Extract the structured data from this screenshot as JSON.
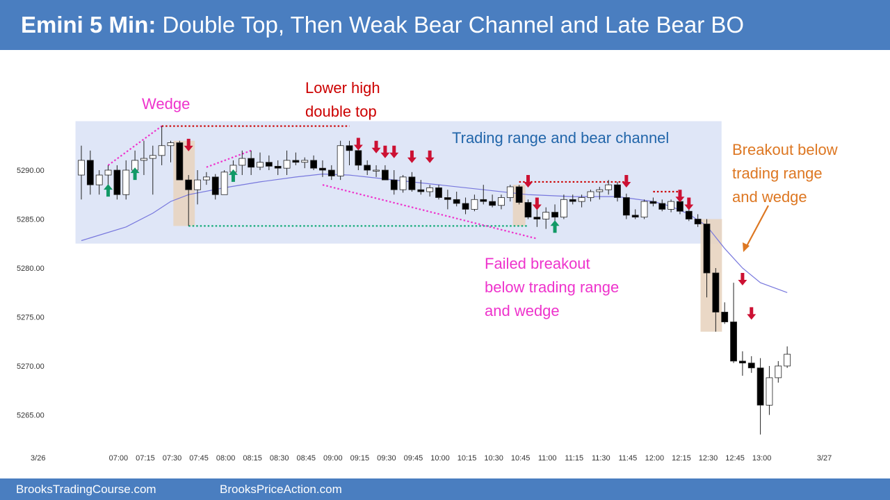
{
  "header": {
    "title_lead": "Emini 5 Min:",
    "title_rest": "Double Top, Then Weak Bear Channel and Late Bear BO",
    "background": "#4a7ec0"
  },
  "footer": {
    "left_link": "BrooksTradingCourse.com",
    "right_link": "BrooksPriceAction.com",
    "background": "#4a7ec0"
  },
  "colors": {
    "bull_body": "#ffffff",
    "bear_body": "#000000",
    "wick": "#222222",
    "moving_average": "#7777dd",
    "range_fill": "#dfe6f7",
    "highlight_fill": "#e8d4c0",
    "magenta": "#ee33cc",
    "red": "#cc0000",
    "green": "#11aa77",
    "orange": "#dd7722",
    "blue_text": "#2266aa",
    "arrow_red": "#cc1133",
    "arrow_green": "#119966"
  },
  "chart_data": {
    "type": "candlestick",
    "title": "Emini 5 Min",
    "ylim": [
      5263,
      5300
    ],
    "y_ticks": [
      5290,
      5285,
      5280,
      5275,
      5270,
      5265
    ],
    "y_tick_labels": [
      "5290.00",
      "5285.00",
      "5280.00",
      "5275.00",
      "5270.00",
      "5265.00"
    ],
    "x_tick_labels": [
      "3/26",
      "07:00",
      "07:15",
      "07:30",
      "07:45",
      "08:00",
      "08:15",
      "08:30",
      "08:45",
      "09:00",
      "09:15",
      "09:30",
      "09:45",
      "10:00",
      "10:15",
      "10:30",
      "10:45",
      "11:00",
      "11:15",
      "11:30",
      "11:45",
      "12:00",
      "12:15",
      "12:30",
      "12:45",
      "13:00",
      "3/27"
    ],
    "x_tick_bar_index": [
      -5,
      4,
      7,
      10,
      13,
      16,
      19,
      22,
      25,
      28,
      31,
      34,
      37,
      40,
      43,
      46,
      49,
      52,
      55,
      58,
      61,
      64,
      67,
      70,
      73,
      76,
      83
    ],
    "candles": [
      {
        "o": 5289.5,
        "h": 5292.5,
        "l": 5287,
        "c": 5291
      },
      {
        "o": 5291,
        "h": 5292,
        "l": 5287.5,
        "c": 5288.5
      },
      {
        "o": 5288.5,
        "h": 5290,
        "l": 5287.5,
        "c": 5289.5
      },
      {
        "o": 5289.5,
        "h": 5290.5,
        "l": 5287.8,
        "c": 5290
      },
      {
        "o": 5290,
        "h": 5290.5,
        "l": 5287,
        "c": 5287.5
      },
      {
        "o": 5287.5,
        "h": 5291,
        "l": 5287,
        "c": 5290
      },
      {
        "o": 5290,
        "h": 5292,
        "l": 5289.5,
        "c": 5291
      },
      {
        "o": 5291,
        "h": 5293,
        "l": 5289.5,
        "c": 5291.2
      },
      {
        "o": 5291.2,
        "h": 5292.5,
        "l": 5287.5,
        "c": 5291.5
      },
      {
        "o": 5291.5,
        "h": 5294.5,
        "l": 5290.5,
        "c": 5292.5
      },
      {
        "o": 5292.5,
        "h": 5293,
        "l": 5290.8,
        "c": 5292.8
      },
      {
        "o": 5292.8,
        "h": 5293,
        "l": 5289,
        "c": 5289
      },
      {
        "o": 5289,
        "h": 5289.5,
        "l": 5284.3,
        "c": 5288
      },
      {
        "o": 5288,
        "h": 5290,
        "l": 5286.5,
        "c": 5289
      },
      {
        "o": 5289,
        "h": 5289.8,
        "l": 5288.5,
        "c": 5289.3
      },
      {
        "o": 5289.3,
        "h": 5289.6,
        "l": 5287,
        "c": 5287.5
      },
      {
        "o": 5287.5,
        "h": 5290,
        "l": 5287.5,
        "c": 5289.8
      },
      {
        "o": 5289.8,
        "h": 5291,
        "l": 5289,
        "c": 5290.5
      },
      {
        "o": 5290.5,
        "h": 5292,
        "l": 5289.5,
        "c": 5291.2
      },
      {
        "o": 5291.2,
        "h": 5292,
        "l": 5289.5,
        "c": 5290.3
      },
      {
        "o": 5290.3,
        "h": 5291.8,
        "l": 5290,
        "c": 5290.8
      },
      {
        "o": 5290.8,
        "h": 5291.5,
        "l": 5290,
        "c": 5290.4
      },
      {
        "o": 5290.4,
        "h": 5291,
        "l": 5289.5,
        "c": 5290.2
      },
      {
        "o": 5290.2,
        "h": 5292,
        "l": 5289.5,
        "c": 5291
      },
      {
        "o": 5291,
        "h": 5291.8,
        "l": 5290.5,
        "c": 5290.8
      },
      {
        "o": 5290.8,
        "h": 5291.3,
        "l": 5290.2,
        "c": 5291
      },
      {
        "o": 5291,
        "h": 5291.5,
        "l": 5290,
        "c": 5290.2
      },
      {
        "o": 5290.2,
        "h": 5291,
        "l": 5289.3,
        "c": 5290
      },
      {
        "o": 5290,
        "h": 5290.5,
        "l": 5289,
        "c": 5289.4
      },
      {
        "o": 5289.4,
        "h": 5293,
        "l": 5289,
        "c": 5292.5
      },
      {
        "o": 5292.5,
        "h": 5293,
        "l": 5290.5,
        "c": 5292
      },
      {
        "o": 5292,
        "h": 5293.2,
        "l": 5290,
        "c": 5290.5
      },
      {
        "o": 5290.5,
        "h": 5291,
        "l": 5289.5,
        "c": 5290
      },
      {
        "o": 5290,
        "h": 5290.5,
        "l": 5289.3,
        "c": 5290
      },
      {
        "o": 5290,
        "h": 5290.5,
        "l": 5289,
        "c": 5289
      },
      {
        "o": 5289,
        "h": 5290,
        "l": 5287.5,
        "c": 5288
      },
      {
        "o": 5288,
        "h": 5289.5,
        "l": 5287.7,
        "c": 5289.3
      },
      {
        "o": 5289.3,
        "h": 5289.8,
        "l": 5287.8,
        "c": 5288
      },
      {
        "o": 5288,
        "h": 5289,
        "l": 5287.5,
        "c": 5287.8
      },
      {
        "o": 5287.8,
        "h": 5288.5,
        "l": 5287.3,
        "c": 5288.2
      },
      {
        "o": 5288.2,
        "h": 5288.5,
        "l": 5287,
        "c": 5287.2
      },
      {
        "o": 5287.2,
        "h": 5288,
        "l": 5286,
        "c": 5287
      },
      {
        "o": 5287,
        "h": 5287.8,
        "l": 5286.3,
        "c": 5286.6
      },
      {
        "o": 5286.6,
        "h": 5287.2,
        "l": 5285.5,
        "c": 5286
      },
      {
        "o": 5286,
        "h": 5287.5,
        "l": 5285.8,
        "c": 5287
      },
      {
        "o": 5287,
        "h": 5288.5,
        "l": 5286.5,
        "c": 5286.8
      },
      {
        "o": 5286.8,
        "h": 5287.5,
        "l": 5286.2,
        "c": 5286.4
      },
      {
        "o": 5286.4,
        "h": 5287.5,
        "l": 5286,
        "c": 5287.2
      },
      {
        "o": 5287.2,
        "h": 5288.5,
        "l": 5286.8,
        "c": 5288.3
      },
      {
        "o": 5288.3,
        "h": 5288.5,
        "l": 5286.5,
        "c": 5286.7
      },
      {
        "o": 5286.7,
        "h": 5287,
        "l": 5285,
        "c": 5285.2
      },
      {
        "o": 5285.2,
        "h": 5286,
        "l": 5284.2,
        "c": 5285
      },
      {
        "o": 5285,
        "h": 5286.2,
        "l": 5284,
        "c": 5285.7
      },
      {
        "o": 5285.7,
        "h": 5286.5,
        "l": 5284.3,
        "c": 5285.2
      },
      {
        "o": 5285.2,
        "h": 5287.5,
        "l": 5285,
        "c": 5287
      },
      {
        "o": 5287,
        "h": 5287.5,
        "l": 5286.5,
        "c": 5286.8
      },
      {
        "o": 5286.8,
        "h": 5287.5,
        "l": 5286.2,
        "c": 5287.2
      },
      {
        "o": 5287.2,
        "h": 5288,
        "l": 5286.8,
        "c": 5287.8
      },
      {
        "o": 5287.8,
        "h": 5288.3,
        "l": 5287,
        "c": 5288
      },
      {
        "o": 5288,
        "h": 5289,
        "l": 5287.5,
        "c": 5288.5
      },
      {
        "o": 5288.5,
        "h": 5288.8,
        "l": 5286.8,
        "c": 5287.2
      },
      {
        "o": 5287.2,
        "h": 5287.6,
        "l": 5285,
        "c": 5285.4
      },
      {
        "o": 5285.4,
        "h": 5286,
        "l": 5285,
        "c": 5285.2
      },
      {
        "o": 5285.2,
        "h": 5287,
        "l": 5285,
        "c": 5286.8
      },
      {
        "o": 5286.8,
        "h": 5287.2,
        "l": 5286.3,
        "c": 5286.6
      },
      {
        "o": 5286.6,
        "h": 5287,
        "l": 5285.8,
        "c": 5286
      },
      {
        "o": 5286,
        "h": 5287,
        "l": 5285.7,
        "c": 5286.8
      },
      {
        "o": 5286.8,
        "h": 5287.2,
        "l": 5285.5,
        "c": 5285.8
      },
      {
        "o": 5285.8,
        "h": 5286.2,
        "l": 5284.8,
        "c": 5285
      },
      {
        "o": 5285,
        "h": 5285.5,
        "l": 5284.2,
        "c": 5284.5
      },
      {
        "o": 5284.5,
        "h": 5285,
        "l": 5277,
        "c": 5279.5
      },
      {
        "o": 5279.5,
        "h": 5280,
        "l": 5273.5,
        "c": 5275.5
      },
      {
        "o": 5275.5,
        "h": 5276.5,
        "l": 5274.3,
        "c": 5274.5
      },
      {
        "o": 5274.5,
        "h": 5278.5,
        "l": 5270.3,
        "c": 5270.5
      },
      {
        "o": 5270.5,
        "h": 5271.5,
        "l": 5269,
        "c": 5270.3
      },
      {
        "o": 5270.3,
        "h": 5271,
        "l": 5269.3,
        "c": 5269.8
      },
      {
        "o": 5269.8,
        "h": 5270.8,
        "l": 5263,
        "c": 5266
      },
      {
        "o": 5266,
        "h": 5270,
        "l": 5265,
        "c": 5268.8
      },
      {
        "o": 5268.8,
        "h": 5270.5,
        "l": 5268.3,
        "c": 5270
      },
      {
        "o": 5270,
        "h": 5272,
        "l": 5269.8,
        "c": 5271.2
      }
    ],
    "moving_average": [
      {
        "i": 0,
        "v": 5282.8
      },
      {
        "i": 5,
        "v": 5284.2
      },
      {
        "i": 8,
        "v": 5285.6
      },
      {
        "i": 10,
        "v": 5286.8
      },
      {
        "i": 12,
        "v": 5287.5
      },
      {
        "i": 16,
        "v": 5288.2
      },
      {
        "i": 20,
        "v": 5288.8
      },
      {
        "i": 24,
        "v": 5289.3
      },
      {
        "i": 27,
        "v": 5289.6
      },
      {
        "i": 30,
        "v": 5289.5
      },
      {
        "i": 35,
        "v": 5289
      },
      {
        "i": 40,
        "v": 5288.5
      },
      {
        "i": 45,
        "v": 5288
      },
      {
        "i": 50,
        "v": 5287.5
      },
      {
        "i": 55,
        "v": 5287.3
      },
      {
        "i": 60,
        "v": 5287.3
      },
      {
        "i": 64,
        "v": 5286.8
      },
      {
        "i": 66,
        "v": 5286.3
      },
      {
        "i": 68,
        "v": 5285.5
      },
      {
        "i": 70,
        "v": 5284.3
      },
      {
        "i": 72,
        "v": 5282
      },
      {
        "i": 74,
        "v": 5280
      },
      {
        "i": 76,
        "v": 5278.5
      },
      {
        "i": 79,
        "v": 5277.5
      }
    ],
    "trading_range": {
      "i_start": -0.5,
      "i_end": 71.5,
      "y_top": 5295,
      "y_bottom": 5282.5
    },
    "highlighted_bars": [
      {
        "i_start": 11,
        "i_end": 12,
        "y_top": 5293,
        "y_bottom": 5284.3
      },
      {
        "i_start": 49,
        "i_end": 49,
        "y_top": 5288.5,
        "y_bottom": 5284.3
      },
      {
        "i_start": 70,
        "i_end": 71,
        "y_top": 5285,
        "y_bottom": 5273.5
      }
    ],
    "lines": [
      {
        "name": "wedge-line",
        "color": "magenta",
        "x1": 3,
        "y1": 5290.5,
        "x2": 9,
        "y2": 5294.5
      },
      {
        "name": "upper-wedge-line",
        "color": "magenta",
        "x1": 14,
        "y1": 5290.3,
        "x2": 19,
        "y2": 5292
      },
      {
        "name": "double-top-line",
        "color": "red",
        "x1": 9,
        "y1": 5294.5,
        "x2": 30,
        "y2": 5294.5
      },
      {
        "name": "range-bottom-line",
        "color": "green",
        "x1": 12,
        "y1": 5284.3,
        "x2": 50,
        "y2": 5284.3
      },
      {
        "name": "failed-breakout-wedge-line",
        "color": "magenta",
        "x1": 27,
        "y1": 5288.5,
        "x2": 51,
        "y2": 5283
      },
      {
        "name": "lower-high-line",
        "color": "red",
        "x1": 49,
        "y1": 5288.8,
        "x2": 61,
        "y2": 5288.8
      },
      {
        "name": "small-top-line",
        "color": "red",
        "x1": 64,
        "y1": 5287.8,
        "x2": 67,
        "y2": 5287.8
      }
    ],
    "arrows_down": [
      {
        "i": 12,
        "y": 5293.2
      },
      {
        "i": 31,
        "y": 5293.3
      },
      {
        "i": 33,
        "y": 5293
      },
      {
        "i": 34,
        "y": 5292.5
      },
      {
        "i": 35,
        "y": 5292.5
      },
      {
        "i": 37,
        "y": 5292
      },
      {
        "i": 39,
        "y": 5292
      },
      {
        "i": 50,
        "y": 5289.5
      },
      {
        "i": 51,
        "y": 5287.2
      },
      {
        "i": 61,
        "y": 5289.5
      },
      {
        "i": 67,
        "y": 5288
      },
      {
        "i": 68,
        "y": 5287.2
      },
      {
        "i": 74,
        "y": 5279.5
      },
      {
        "i": 75,
        "y": 5276
      }
    ],
    "arrows_up": [
      {
        "i": 3,
        "y": 5287.3
      },
      {
        "i": 6,
        "y": 5289
      },
      {
        "i": 17,
        "y": 5288.8
      },
      {
        "i": 53,
        "y": 5283.6
      }
    ],
    "annotations": [
      {
        "name": "wedge-label",
        "lines": [
          "Wedge"
        ],
        "color": "magenta"
      },
      {
        "name": "lower-high-label",
        "lines": [
          "Lower high",
          "double top"
        ],
        "color": "red"
      },
      {
        "name": "trading-range-label",
        "lines": [
          "Trading range and bear channel"
        ],
        "color": "blue_text"
      },
      {
        "name": "breakout-label",
        "lines": [
          "Breakout below",
          "trading range",
          "and wedge"
        ],
        "color": "orange"
      },
      {
        "name": "failed-breakout-label",
        "lines": [
          "Failed breakout",
          "below trading range",
          "and wedge"
        ],
        "color": "magenta"
      }
    ],
    "pointer_arrow": {
      "color": "orange",
      "from_label": "breakout-label",
      "to_bar": 70
    }
  }
}
